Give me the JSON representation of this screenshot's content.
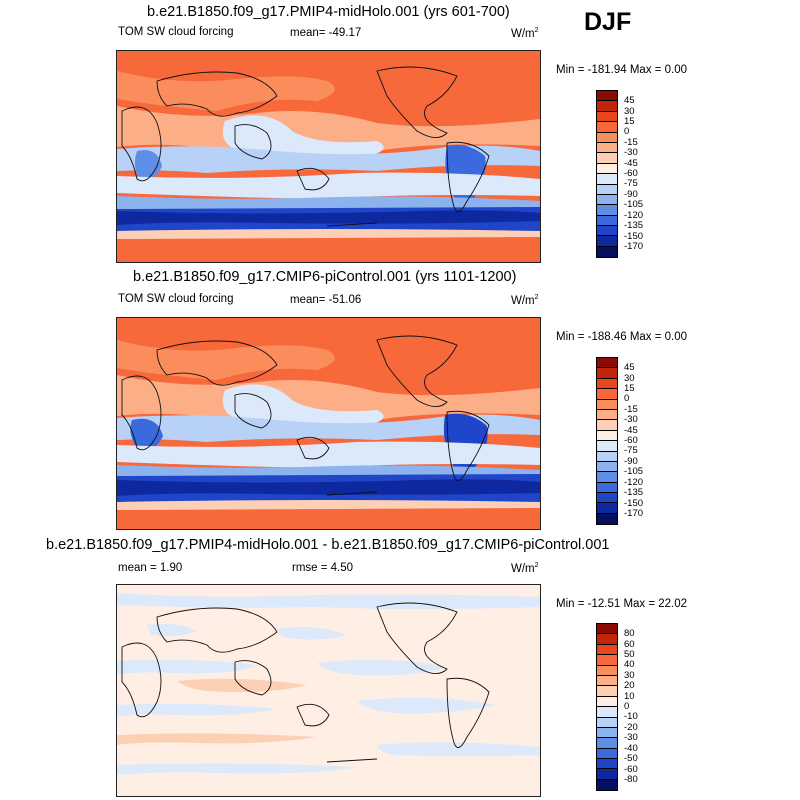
{
  "season": "DJF",
  "panels": [
    {
      "title": "b.e21.B1850.f09_g17.PMIP4-midHolo.001 (yrs 601-700)",
      "left_label": "TOM SW cloud forcing",
      "center_label": "mean= -49.17",
      "units_label": "W/m",
      "units_sup": "2",
      "minmax": "Min = -181.94 Max =   0.00",
      "legend_labels": [
        "45",
        "30",
        "15",
        "0",
        "-15",
        "-30",
        "-45",
        "-60",
        "-75",
        "-90",
        "-105",
        "-120",
        "-135",
        "-150",
        "-170"
      ],
      "legend_colors": [
        "#8b0a05",
        "#c1250b",
        "#e8471d",
        "#f7683b",
        "#fb8c5c",
        "#fcae86",
        "#fdd0b5",
        "#feeee4",
        "#dce9fb",
        "#b7d1f7",
        "#8db3ef",
        "#5f8ee6",
        "#3a6ade",
        "#1f46c8",
        "#0e28a0",
        "#03115f"
      ]
    },
    {
      "title": "b.e21.B1850.f09_g17.CMIP6-piControl.001 (yrs 1101-1200)",
      "left_label": "TOM SW cloud forcing",
      "center_label": "mean= -51.06",
      "units_label": "W/m",
      "units_sup": "2",
      "minmax": "Min = -188.46 Max =   0.00",
      "legend_labels": [
        "45",
        "30",
        "15",
        "0",
        "-15",
        "-30",
        "-45",
        "-60",
        "-75",
        "-90",
        "-105",
        "-120",
        "-135",
        "-150",
        "-170"
      ],
      "legend_colors": [
        "#8b0a05",
        "#c1250b",
        "#e8471d",
        "#f7683b",
        "#fb8c5c",
        "#fcae86",
        "#fdd0b5",
        "#feeee4",
        "#dce9fb",
        "#b7d1f7",
        "#8db3ef",
        "#5f8ee6",
        "#3a6ade",
        "#1f46c8",
        "#0e28a0",
        "#03115f"
      ]
    },
    {
      "title": "b.e21.B1850.f09_g17.PMIP4-midHolo.001 - b.e21.B1850.f09_g17.CMIP6-piControl.001",
      "left_label": "mean =   1.90",
      "center_label": "rmse =   4.50",
      "units_label": "W/m",
      "units_sup": "2",
      "minmax": "Min = -12.51 Max =  22.02",
      "legend_labels": [
        "80",
        "60",
        "50",
        "40",
        "30",
        "20",
        "10",
        "0",
        "-10",
        "-20",
        "-30",
        "-40",
        "-50",
        "-60",
        "-80"
      ],
      "legend_colors": [
        "#8b0a05",
        "#c1250b",
        "#e8471d",
        "#f7683b",
        "#fb8c5c",
        "#fcae86",
        "#fdd0b5",
        "#feeee4",
        "#dce9fb",
        "#b7d1f7",
        "#8db3ef",
        "#5f8ee6",
        "#3a6ade",
        "#1f46c8",
        "#0e28a0",
        "#03115f"
      ]
    }
  ]
}
